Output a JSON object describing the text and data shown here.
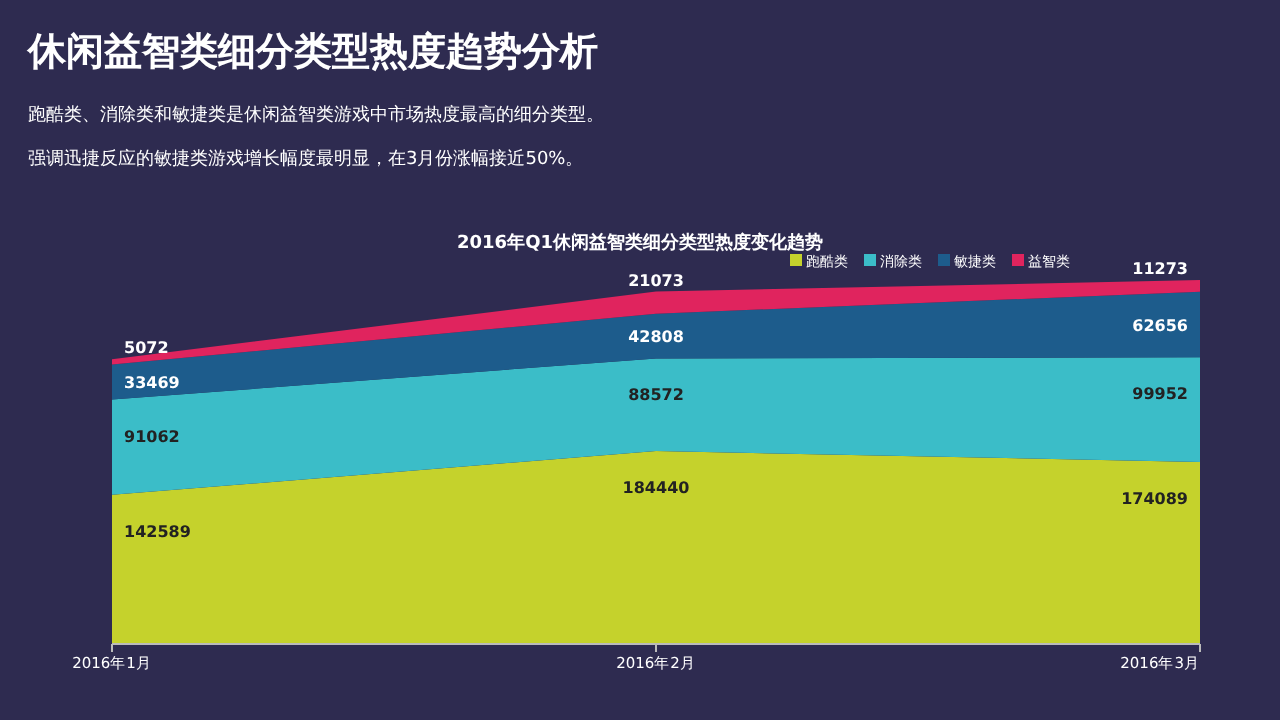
{
  "chart_data": {
    "type": "area",
    "stacked": true,
    "title": "休闲益智类细分类型热度趋势分析",
    "subtitle": "跑酷类、消除类和敏捷类是休闲益智类游戏中市场热度最高的细分类型。",
    "annotations": [
      "强调迅捷反应的敏捷类游戏增长幅度最明显，在3月份涨幅接近50%。",
      "2016年Q1休闲益智类细分类型热度变化趋势"
    ],
    "categories": [
      "2016年1月",
      "2016年2月",
      "2016年3月"
    ],
    "series": [
      {
        "name": "跑酷类",
        "color": "#c5d22c",
        "values": [
          142589,
          184440,
          174089
        ]
      },
      {
        "name": "消除类",
        "color": "#3bbdc8",
        "values": [
          91062,
          88572,
          99952
        ]
      },
      {
        "name": "敏捷类",
        "color": "#1d5c8c",
        "values": [
          33469,
          42808,
          62656
        ]
      },
      {
        "name": "益智类",
        "color": "#e0245e",
        "values": [
          5072,
          21073,
          11273
        ]
      }
    ],
    "data_labels": true,
    "legend": "top right",
    "grid": false
  }
}
